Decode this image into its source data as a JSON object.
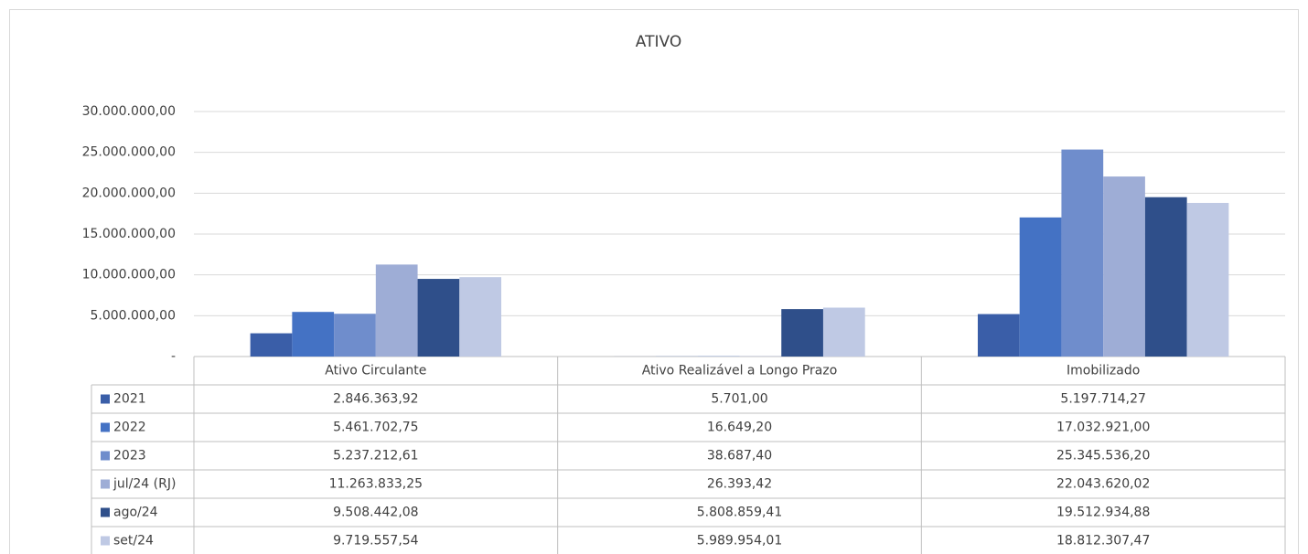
{
  "chart_data": {
    "type": "bar",
    "title": "ATIVO",
    "categories": [
      "Ativo Circulante",
      "Ativo Realizável a Longo Prazo",
      "Imobilizado"
    ],
    "series": [
      {
        "name": "2021",
        "color": "#3a5ea8",
        "values": [
          2846363.92,
          5701.0,
          5197714.27
        ],
        "value_labels": [
          "2.846.363,92",
          "5.701,00",
          "5.197.714,27"
        ]
      },
      {
        "name": "2022",
        "color": "#4472c4",
        "values": [
          5461702.75,
          16649.2,
          17032921.0
        ],
        "value_labels": [
          "5.461.702,75",
          "16.649,20",
          "17.032.921,00"
        ]
      },
      {
        "name": "2023",
        "color": "#6f8dcc",
        "values": [
          5237212.61,
          38687.4,
          25345536.2
        ],
        "value_labels": [
          "5.237.212,61",
          "38.687,40",
          "25.345.536,20"
        ]
      },
      {
        "name": "jul/24 (RJ)",
        "color": "#9eadd6",
        "values": [
          11263833.25,
          26393.42,
          22043620.02
        ],
        "value_labels": [
          "11.263.833,25",
          "26.393,42",
          "22.043.620,02"
        ]
      },
      {
        "name": "ago/24",
        "color": "#2f4f8a",
        "values": [
          9508442.08,
          5808859.41,
          19512934.88
        ],
        "value_labels": [
          "9.508.442,08",
          "5.808.859,41",
          "19.512.934,88"
        ]
      },
      {
        "name": "set/24",
        "color": "#bfc9e4",
        "values": [
          9719557.54,
          5989954.01,
          18812307.47
        ],
        "value_labels": [
          "9.719.557,54",
          "5.989.954,01",
          "18.812.307,47"
        ]
      }
    ],
    "ylim": [
      0,
      30000000
    ],
    "yticks": [
      {
        "value": 0,
        "label": "-"
      },
      {
        "value": 5000000,
        "label": "5.000.000,00"
      },
      {
        "value": 10000000,
        "label": "10.000.000,00"
      },
      {
        "value": 15000000,
        "label": "15.000.000,00"
      },
      {
        "value": 20000000,
        "label": "20.000.000,00"
      },
      {
        "value": 25000000,
        "label": "25.000.000,00"
      },
      {
        "value": 30000000,
        "label": "30.000.000,00"
      }
    ],
    "grid": true
  }
}
